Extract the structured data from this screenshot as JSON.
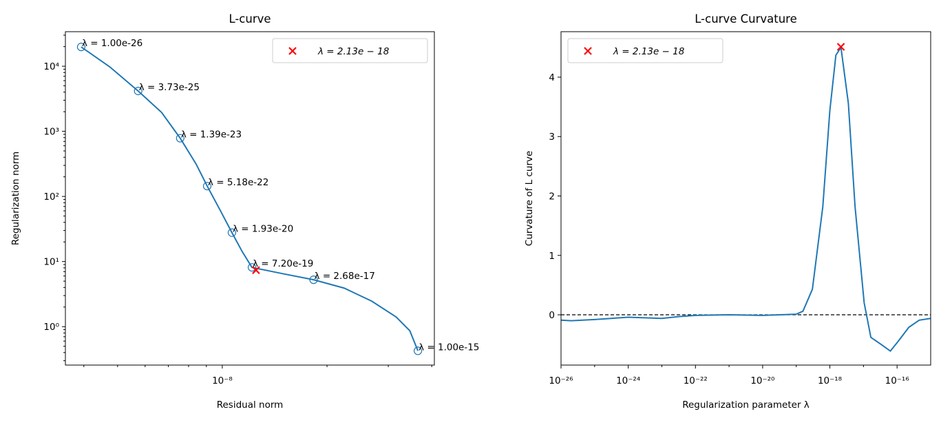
{
  "chart_data": [
    {
      "type": "line",
      "title": "L-curve",
      "xlabel": "Residual norm",
      "ylabel": "Regularization norm",
      "xscale": "log",
      "yscale": "log",
      "xlim": [
        3.54e-09,
        4.07e-08
      ],
      "ylim": [
        0.257,
        33900
      ],
      "xticks": [
        {
          "value": 1e-08,
          "label": "10⁻⁸"
        }
      ],
      "xminor": [
        4e-09,
        5e-09,
        6e-09,
        7e-09,
        8e-09,
        9e-09,
        2e-08,
        3e-08,
        4e-08
      ],
      "yticks": [
        {
          "value": 1,
          "label": "10⁰"
        },
        {
          "value": 10,
          "label": "10¹"
        },
        {
          "value": 100,
          "label": "10²"
        },
        {
          "value": 1000,
          "label": "10³"
        },
        {
          "value": 10000,
          "label": "10⁴"
        }
      ],
      "yminor": [
        0.3,
        0.4,
        0.5,
        0.6,
        0.7,
        0.8,
        0.9,
        2,
        3,
        4,
        5,
        6,
        7,
        8,
        9,
        20,
        30,
        40,
        50,
        60,
        70,
        80,
        90,
        200,
        300,
        400,
        500,
        600,
        700,
        800,
        900,
        2000,
        3000,
        4000,
        5000,
        6000,
        7000,
        8000,
        9000,
        20000,
        30000
      ],
      "legend": "upper right",
      "series": [
        {
          "style": "line",
          "color": "#1f77b4",
          "x": [
            3.93e-09,
            4.75e-09,
            5.73e-09,
            6.69e-09,
            7.57e-09,
            8.41e-09,
            9.05e-09,
            9.86e-09,
            1.066e-08,
            1.141e-08,
            1.217e-08,
            1.487e-08,
            1.83e-08,
            2.24e-08,
            2.69e-08,
            3.16e-08,
            3.46e-08,
            3.65e-08
          ],
          "values": [
            19770,
            9750,
            4160,
            1954,
            783,
            314,
            144,
            61.4,
            27.8,
            14.2,
            8.13,
            6.53,
            5.25,
            3.91,
            2.46,
            1.41,
            0.864,
            0.426
          ]
        },
        {
          "style": "circle",
          "color": "#1f77b4",
          "x": [
            3.93e-09,
            5.73e-09,
            7.57e-09,
            9.05e-09,
            1.066e-08,
            1.217e-08,
            1.83e-08,
            3.65e-08
          ],
          "values": [
            19770,
            4160,
            783,
            144,
            27.8,
            8.13,
            5.25,
            0.426
          ],
          "point_labels": [
            "λ = 1.00e-26",
            "λ = 3.73e-25",
            "λ = 1.39e-23",
            "λ = 5.18e-22",
            "λ = 1.93e-20",
            "λ = 7.20e-19",
            "λ = 2.68e-17",
            "λ = 1.00e-15"
          ]
        },
        {
          "name": "λ = 2.13e − 18",
          "style": "cross",
          "color": "#ff0000",
          "x": [
            1.25e-08
          ],
          "values": [
            7.38
          ]
        }
      ]
    },
    {
      "type": "line",
      "title": "L-curve Curvature",
      "xlabel": "Regularization parameter λ",
      "ylabel": "Curvature of L curve",
      "xscale": "log",
      "yscale": "linear",
      "xlim": [
        1e-26,
        1e-15
      ],
      "ylim": [
        -0.846,
        4.765
      ],
      "xticks": [
        {
          "value": 1e-26,
          "label": "10⁻²⁶"
        },
        {
          "value": 1e-24,
          "label": "10⁻²⁴"
        },
        {
          "value": 1e-22,
          "label": "10⁻²²"
        },
        {
          "value": 1e-20,
          "label": "10⁻²⁰"
        },
        {
          "value": 1e-18,
          "label": "10⁻¹⁸"
        },
        {
          "value": 1e-16,
          "label": "10⁻¹⁶"
        }
      ],
      "xminor": [
        1e-25,
        1e-23,
        1e-21,
        1e-19,
        1e-17
      ],
      "yticks": [
        0,
        1,
        2,
        3,
        4
      ],
      "hline": 0,
      "legend": "upper left",
      "series": [
        {
          "style": "line",
          "color": "#1f77b4",
          "x": [
            1e-26,
            2e-26,
            1e-25,
            1e-24,
            1e-23,
            3.16e-23,
            1e-22,
            1e-21,
            1e-20,
            3.16e-20,
            1e-19,
            1.58e-19,
            3.02e-19,
            6.17e-19,
            1e-18,
            1.51e-18,
            2.14e-18,
            3.55e-18,
            5.62e-18,
            1.05e-17,
            1.66e-17,
            3.39e-17,
            6.31e-17,
            1.1e-16,
            2.24e-16,
            4.57e-16,
            1e-15
          ],
          "values": [
            -0.09,
            -0.1,
            -0.08,
            -0.04,
            -0.06,
            -0.03,
            -0.01,
            0,
            -0.01,
            0,
            0.01,
            0.06,
            0.43,
            1.82,
            3.44,
            4.37,
            4.5,
            3.56,
            1.82,
            0.2,
            -0.38,
            -0.5,
            -0.61,
            -0.44,
            -0.21,
            -0.09,
            -0.06
          ]
        },
        {
          "name": "λ = 2.13e − 18",
          "style": "cross",
          "color": "#ff0000",
          "x": [
            2.13e-18
          ],
          "values": [
            4.51
          ]
        }
      ]
    }
  ]
}
